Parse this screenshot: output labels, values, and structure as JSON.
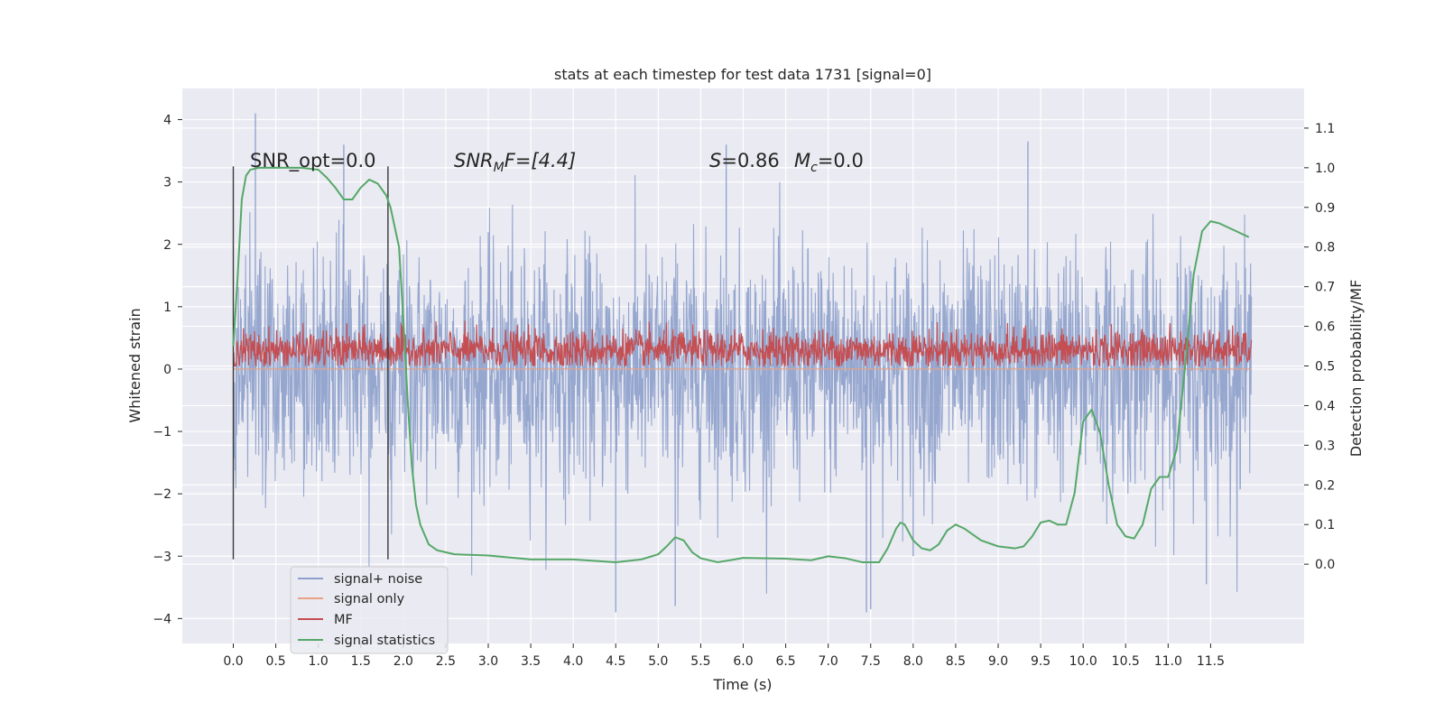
{
  "chart_data": {
    "type": "line",
    "title": "stats at each timestep for test data 1731 [signal=0]",
    "xlabel": "Time (s)",
    "ylabel_left": "Whitened strain",
    "ylabel_right": "Detection probability/MF",
    "xlim": [
      -0.6,
      12.6
    ],
    "ylim_left": [
      -4.4,
      4.5
    ],
    "ylim_right": [
      -0.2,
      1.2
    ],
    "x_ticks": [
      0.0,
      0.5,
      1.0,
      1.5,
      2.0,
      2.5,
      3.0,
      3.5,
      4.0,
      4.5,
      5.0,
      5.5,
      6.0,
      6.5,
      7.0,
      7.5,
      8.0,
      8.5,
      9.0,
      9.5,
      10.0,
      10.5,
      11.0,
      11.5
    ],
    "x_tick_labels": [
      "0.0",
      "0.5",
      "1.0",
      "1.5",
      "2.0",
      "2.5",
      "3.0",
      "3.5",
      "4.0",
      "4.5",
      "5.0",
      "5.5",
      "6.0",
      "6.5",
      "7.0",
      "7.5",
      "8.0",
      "8.5",
      "9.0",
      "9.5",
      "10.0",
      "10.5",
      "11.0",
      "11.5"
    ],
    "y_left_ticks": [
      -4,
      -3,
      -2,
      -1,
      0,
      1,
      2,
      3,
      4
    ],
    "y_left_tick_labels": [
      "−4",
      "−3",
      "−2",
      "−1",
      "0",
      "1",
      "2",
      "3",
      "4"
    ],
    "y_right_ticks": [
      0.0,
      0.1,
      0.2,
      0.3,
      0.4,
      0.5,
      0.6,
      0.7,
      0.8,
      0.9,
      1.0,
      1.1
    ],
    "y_right_tick_labels": [
      "0.0",
      "0.1",
      "0.2",
      "0.3",
      "0.4",
      "0.5",
      "0.6",
      "0.7",
      "0.8",
      "0.9",
      "1.0",
      "1.1"
    ],
    "grid": true,
    "legend_position": "lower-left",
    "annotations": {
      "snr_opt": "SNR_opt=0.0",
      "snr_mf_prefix": "SNR",
      "snr_mf_sub": "M",
      "snr_mf_suffix": "F=[4.4]",
      "s_label": "S",
      "s_value": "=0.86",
      "mc_label": "M",
      "mc_sub": "c",
      "mc_value": "=0.0"
    },
    "vertical_markers": [
      0.0,
      1.82
    ],
    "series": [
      {
        "name": "signal+ noise",
        "color": "#8da0cb",
        "kind": "noise",
        "x_range": [
          0.0,
          11.98
        ],
        "std": 0.95,
        "extremes": [
          [
            0.26,
            4.1
          ],
          [
            4.5,
            -3.9
          ],
          [
            5.2,
            -3.8
          ],
          [
            7.45,
            -3.9
          ],
          [
            7.5,
            -3.85
          ],
          [
            8.0,
            -3.0
          ],
          [
            11.45,
            -3.45
          ],
          [
            1.3,
            3.6
          ],
          [
            9.35,
            3.65
          ],
          [
            5.8,
            3.6
          ]
        ]
      },
      {
        "name": "signal only",
        "color": "#e8a182",
        "kind": "flat",
        "x_range": [
          0.0,
          11.98
        ],
        "value": 0.0
      },
      {
        "name": "MF",
        "color": "#c44e52",
        "kind": "mf",
        "x_range": [
          0.0,
          11.98
        ],
        "axis": "right",
        "center": 0.54,
        "amplitude": 0.025
      },
      {
        "name": "signal statistics",
        "color": "#55a868",
        "kind": "line",
        "axis": "right",
        "x": [
          0.0,
          0.05,
          0.1,
          0.15,
          0.2,
          0.3,
          0.5,
          0.8,
          1.0,
          1.1,
          1.2,
          1.3,
          1.4,
          1.5,
          1.6,
          1.7,
          1.8,
          1.85,
          1.95,
          2.0,
          2.05,
          2.1,
          2.15,
          2.2,
          2.3,
          2.4,
          2.6,
          3.0,
          3.5,
          4.0,
          4.5,
          4.8,
          5.0,
          5.1,
          5.2,
          5.3,
          5.4,
          5.5,
          5.7,
          5.9,
          6.0,
          6.2,
          6.5,
          6.8,
          7.0,
          7.2,
          7.4,
          7.6,
          7.7,
          7.8,
          7.85,
          7.9,
          8.0,
          8.1,
          8.2,
          8.3,
          8.4,
          8.5,
          8.6,
          8.8,
          9.0,
          9.2,
          9.3,
          9.4,
          9.5,
          9.6,
          9.7,
          9.8,
          9.9,
          10.0,
          10.1,
          10.2,
          10.3,
          10.4,
          10.5,
          10.6,
          10.7,
          10.8,
          10.9,
          11.0,
          11.1,
          11.2,
          11.3,
          11.4,
          11.5,
          11.6,
          11.7,
          11.8,
          11.9,
          11.95
        ],
        "y": [
          0.55,
          0.72,
          0.92,
          0.98,
          0.995,
          1.0,
          1.0,
          1.0,
          0.995,
          0.975,
          0.95,
          0.92,
          0.92,
          0.95,
          0.97,
          0.96,
          0.93,
          0.9,
          0.8,
          0.62,
          0.42,
          0.25,
          0.15,
          0.1,
          0.05,
          0.035,
          0.025,
          0.022,
          0.012,
          0.012,
          0.005,
          0.012,
          0.025,
          0.045,
          0.068,
          0.06,
          0.03,
          0.015,
          0.005,
          0.012,
          0.016,
          0.015,
          0.014,
          0.01,
          0.02,
          0.015,
          0.005,
          0.005,
          0.04,
          0.09,
          0.105,
          0.1,
          0.06,
          0.04,
          0.035,
          0.05,
          0.085,
          0.1,
          0.09,
          0.06,
          0.045,
          0.04,
          0.045,
          0.07,
          0.105,
          0.11,
          0.1,
          0.1,
          0.18,
          0.36,
          0.39,
          0.33,
          0.2,
          0.1,
          0.07,
          0.065,
          0.1,
          0.19,
          0.22,
          0.22,
          0.29,
          0.5,
          0.73,
          0.84,
          0.865,
          0.86,
          0.85,
          0.84,
          0.83,
          0.825
        ]
      }
    ]
  }
}
